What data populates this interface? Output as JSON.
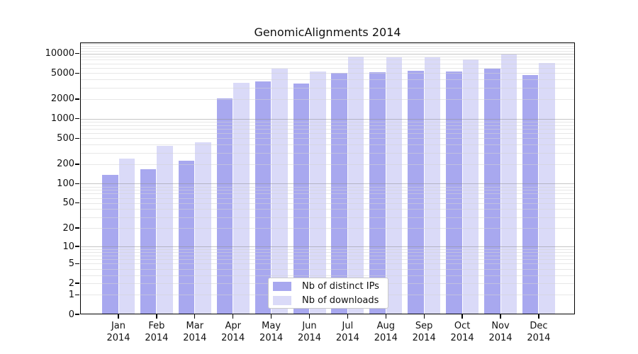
{
  "title": "GenomicAlignments 2014",
  "legend": {
    "items": [
      {
        "label": "Nb of distinct IPs",
        "color": "#a8a8ef"
      },
      {
        "label": "Nb of downloads",
        "color": "#dadaf8"
      }
    ]
  },
  "chart_data": {
    "type": "bar",
    "title": "GenomicAlignments 2014",
    "categories": [
      "Jan",
      "Feb",
      "Mar",
      "Apr",
      "May",
      "Jun",
      "Jul",
      "Aug",
      "Sep",
      "Oct",
      "Nov",
      "Dec"
    ],
    "year": "2014",
    "series": [
      {
        "name": "Nb of distinct IPs",
        "color": "#a8a8ef",
        "values": [
          138,
          167,
          228,
          2065,
          3730,
          3420,
          4990,
          5100,
          5360,
          5230,
          5780,
          4620
        ]
      },
      {
        "name": "Nb of downloads",
        "color": "#dadaf8",
        "values": [
          242,
          385,
          436,
          3500,
          5790,
          5330,
          8860,
          8640,
          8800,
          8100,
          9650,
          7150
        ]
      }
    ],
    "yscale": "log1p",
    "ylim": [
      0,
      14900
    ],
    "yticks": [
      10000,
      5000,
      2000,
      1000,
      500,
      200,
      100,
      50,
      20,
      10,
      5,
      2,
      1,
      0
    ],
    "grid": true,
    "legend_position": "bottom-center"
  }
}
